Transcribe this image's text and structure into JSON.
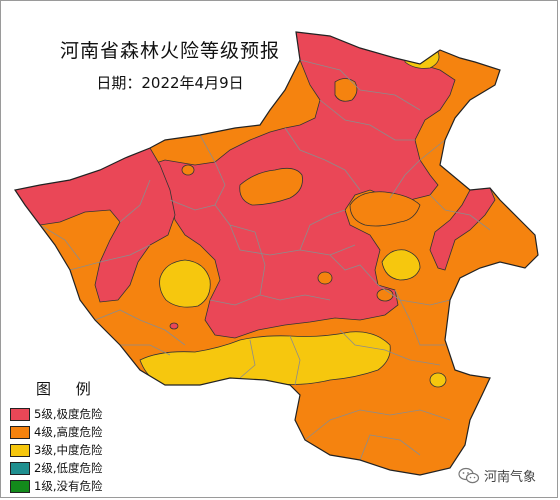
{
  "map": {
    "title": "河南省森林火险等级预报",
    "date": "日期：2022年4月9日"
  },
  "legend": {
    "title": "图 例",
    "items": [
      {
        "label": "5级,极度危险",
        "color": "#ea4757"
      },
      {
        "label": "4级,高度危险",
        "color": "#f5830f"
      },
      {
        "label": "3级,中度危险",
        "color": "#f6c70e"
      },
      {
        "label": "2级,低度危险",
        "color": "#1f8f8f"
      },
      {
        "label": "1级,没有危险",
        "color": "#138a1b"
      }
    ]
  },
  "watermark": {
    "text": "河南气象",
    "icon": "wechat-icon"
  },
  "colors": {
    "level5": "#ea4757",
    "level4": "#f5830f",
    "level3": "#f6c70e",
    "border": "#333333",
    "county_line": "#8c8c8c"
  }
}
